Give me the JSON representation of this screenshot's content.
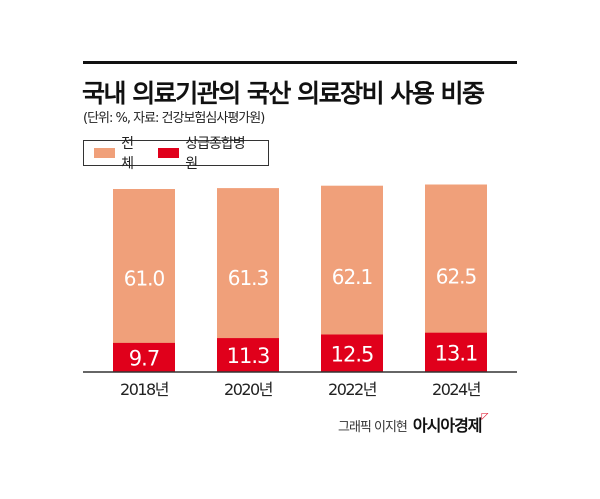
{
  "colors": {
    "total": "#F0A07A",
    "tertiary": "#E0001B"
  },
  "chart_data": {
    "type": "bar",
    "title": "국내 의료기관의 국산 의료장비 사용 비중",
    "subtitle": "(단위: %, 자료: 건강보험심사평가원)",
    "categories": [
      "2018년",
      "2020년",
      "2022년",
      "2024년"
    ],
    "series": [
      {
        "name": "전체",
        "values": [
          61.0,
          61.3,
          62.1,
          62.5
        ]
      },
      {
        "name": "상급종합병원",
        "values": [
          9.7,
          11.3,
          12.5,
          13.1
        ]
      }
    ],
    "ylim": [
      0,
      63
    ],
    "grid": false,
    "legend": "top-left",
    "overlap": true
  },
  "credit": {
    "text": "그래픽 이지현",
    "brand": "아시아경제",
    "mark": "ᄆ"
  }
}
